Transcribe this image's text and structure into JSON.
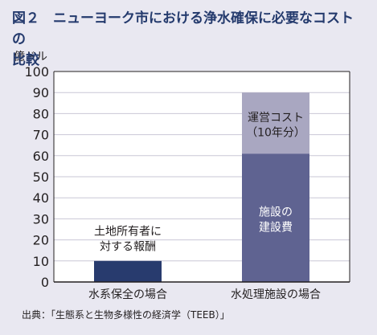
{
  "figure": {
    "title": "図２　ニューヨーク市における浄水確保に必要なコストの\n比較",
    "source": "出典：「生態系と生物多様性の経済学（TEEB）」"
  },
  "colors": {
    "background": "#e9e8f1",
    "plot_bg": "#ffffff",
    "grid": "#c9c7d6",
    "axis": "#231f20",
    "title": "#243a6d",
    "bar_dark": "#283b6e",
    "bar_mid": "#5f6391",
    "bar_light": "#a9a7c1"
  },
  "chart_data": {
    "type": "bar",
    "stacked": true,
    "ylabel": "億ドル",
    "ylim": [
      0,
      100
    ],
    "yticks": [
      0,
      10,
      20,
      30,
      40,
      50,
      60,
      70,
      80,
      90,
      100
    ],
    "grid": true,
    "categories": [
      "水系保全の場合",
      "水処理施設の場合"
    ],
    "series": [
      {
        "name": "土地所有者に\n対する報酬",
        "values": [
          10,
          0
        ],
        "color_key": "bar_dark",
        "label_style": "above"
      },
      {
        "name": "施設の\n建設費",
        "values": [
          0,
          61
        ],
        "color_key": "bar_mid",
        "label_style": "inside-light"
      },
      {
        "name": "運営コスト\n（10年分）",
        "values": [
          0,
          29
        ],
        "color_key": "bar_light",
        "label_style": "inside-dark"
      }
    ]
  }
}
